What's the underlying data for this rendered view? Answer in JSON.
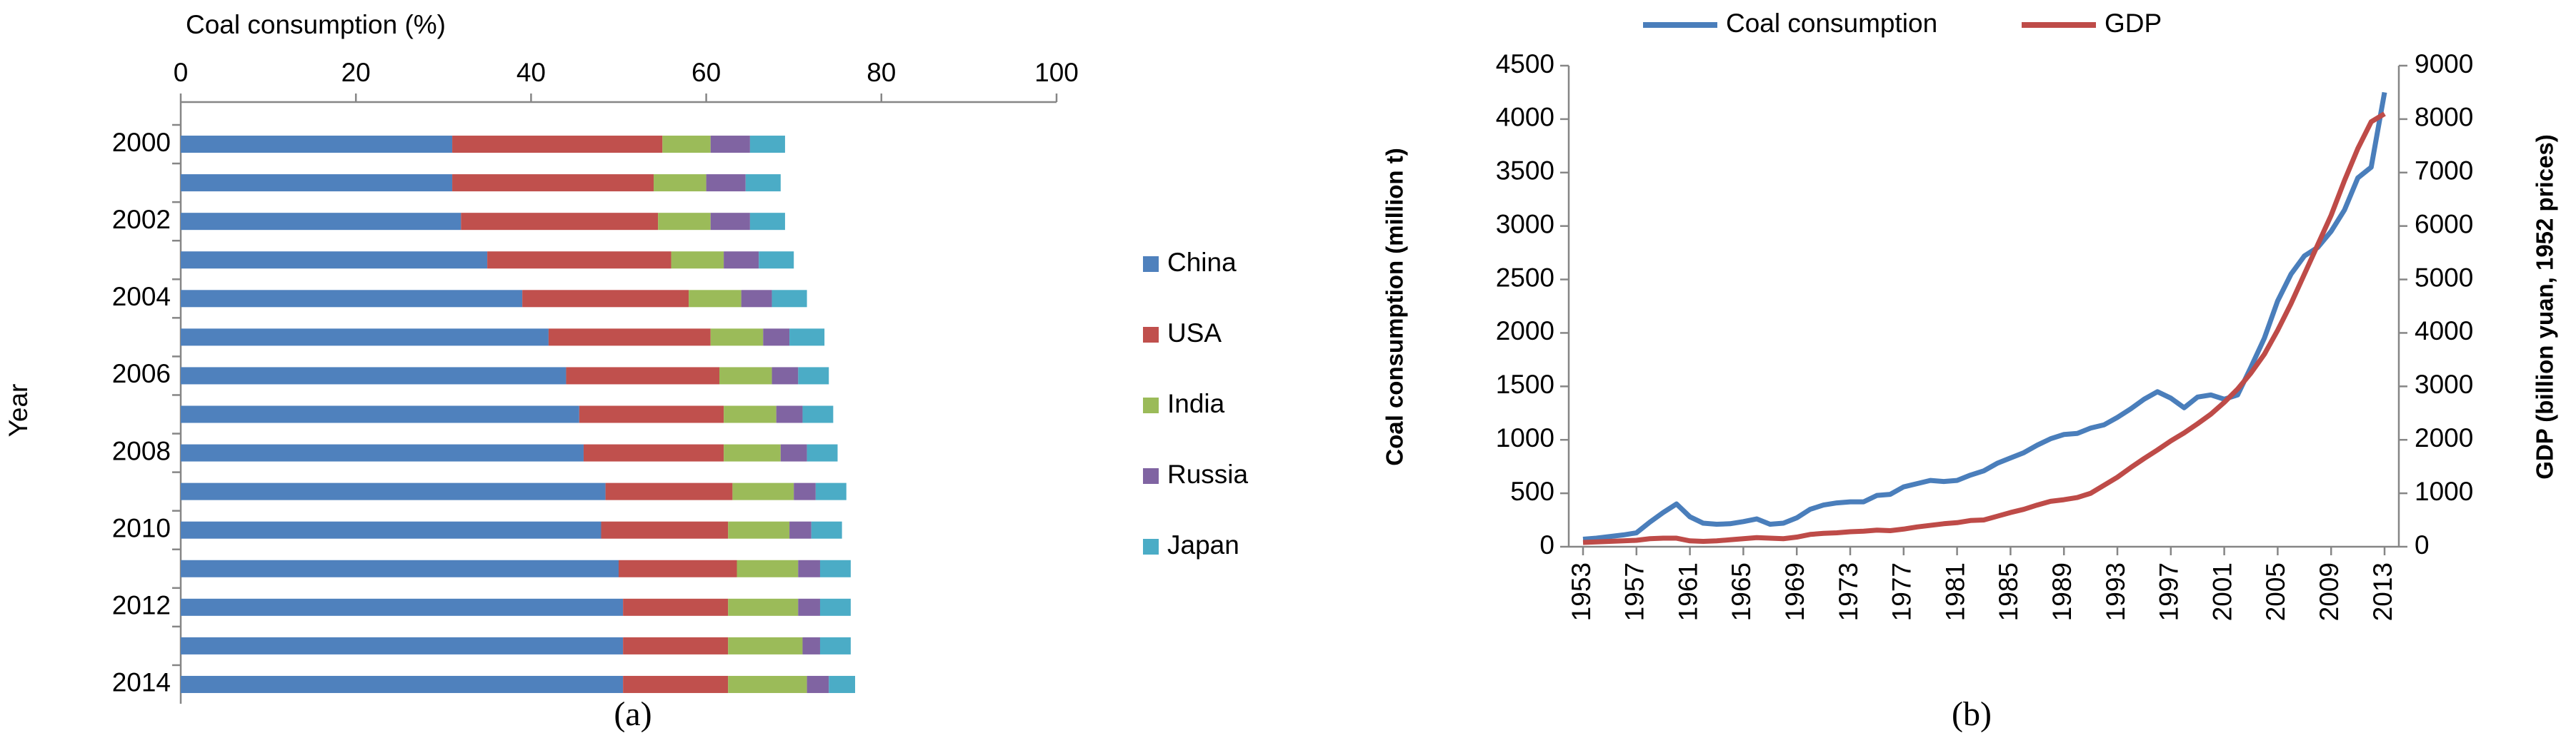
{
  "chart_data": [
    {
      "type": "bar",
      "orientation": "horizontal",
      "stacked": true,
      "xlabel": "Coal consumption (%)",
      "ylabel": "Year",
      "caption": "(a)",
      "categories": [
        "2000",
        null,
        "2002",
        null,
        "2004",
        null,
        "2006",
        null,
        "2008",
        null,
        "2010",
        null,
        "2012",
        null,
        "2014"
      ],
      "series": [
        {
          "name": "China",
          "color": "#4f81bd",
          "values": [
            31,
            31,
            32,
            35,
            39,
            42,
            44,
            45.5,
            46,
            48.5,
            48,
            50,
            50.5,
            50.5,
            50.5
          ]
        },
        {
          "name": "USA",
          "color": "#c0504d",
          "values": [
            24,
            23,
            22.5,
            21,
            19,
            18.5,
            17.5,
            16.5,
            16,
            14.5,
            14.5,
            13.5,
            12,
            12,
            12
          ]
        },
        {
          "name": "India",
          "color": "#9bbb59",
          "values": [
            5.5,
            6,
            6,
            6,
            6,
            6,
            6,
            6,
            6.5,
            7,
            7,
            7,
            8,
            8.5,
            9
          ]
        },
        {
          "name": "Russia",
          "color": "#8064a2",
          "values": [
            4.5,
            4.5,
            4.5,
            4,
            3.5,
            3,
            3,
            3,
            3,
            2.5,
            2.5,
            2.5,
            2.5,
            2,
            2.5
          ]
        },
        {
          "name": "Japan",
          "color": "#4bacc6",
          "values": [
            4,
            4,
            4,
            4,
            4,
            4,
            3.5,
            3.5,
            3.5,
            3.5,
            3.5,
            3.5,
            3.5,
            3.5,
            3
          ]
        }
      ],
      "xlim": [
        0,
        100
      ],
      "xticks": [
        0,
        20,
        40,
        60,
        80,
        100
      ],
      "legend": "right"
    },
    {
      "type": "line",
      "caption": "(b)",
      "ylabel": "Coal consumption (million t)",
      "y2label": "GDP (billion yuan, 1952 prices)",
      "x": [
        1953,
        1954,
        1955,
        1956,
        1957,
        1958,
        1959,
        1960,
        1961,
        1962,
        1963,
        1964,
        1965,
        1966,
        1967,
        1968,
        1969,
        1970,
        1971,
        1972,
        1973,
        1974,
        1975,
        1976,
        1977,
        1978,
        1979,
        1980,
        1981,
        1982,
        1983,
        1984,
        1985,
        1986,
        1987,
        1988,
        1989,
        1990,
        1991,
        1992,
        1993,
        1994,
        1995,
        1996,
        1997,
        1998,
        1999,
        2000,
        2001,
        2002,
        2003,
        2004,
        2005,
        2006,
        2007,
        2008,
        2009,
        2010,
        2011,
        2012,
        2013
      ],
      "series": [
        {
          "name": "Coal consumption",
          "color": "#4a7ebb",
          "values": [
            70,
            80,
            95,
            110,
            130,
            230,
            320,
            400,
            280,
            220,
            210,
            215,
            235,
            260,
            210,
            220,
            270,
            350,
            390,
            410,
            420,
            420,
            480,
            490,
            560,
            590,
            620,
            610,
            620,
            670,
            710,
            780,
            830,
            880,
            950,
            1010,
            1050,
            1060,
            1110,
            1140,
            1210,
            1290,
            1380,
            1450,
            1390,
            1300,
            1400,
            1420,
            1380,
            1420,
            1680,
            1950,
            2300,
            2550,
            2720,
            2800,
            2950,
            3150,
            3450,
            3550,
            4250
          ]
        },
        {
          "name": "GDP",
          "color": "#be4b48",
          "axis": "y2",
          "values": [
            80,
            90,
            100,
            110,
            120,
            150,
            160,
            160,
            110,
            100,
            110,
            130,
            150,
            170,
            160,
            150,
            180,
            230,
            250,
            260,
            280,
            290,
            310,
            300,
            330,
            370,
            400,
            430,
            450,
            490,
            500,
            570,
            640,
            700,
            780,
            850,
            880,
            920,
            1000,
            1150,
            1300,
            1480,
            1650,
            1810,
            1980,
            2130,
            2300,
            2480,
            2700,
            2950,
            3250,
            3600,
            4050,
            4550,
            5100,
            5650,
            6200,
            6850,
            7450,
            7950,
            8100
          ]
        }
      ],
      "xlim": [
        1953,
        2013
      ],
      "xticks": [
        1953,
        1957,
        1961,
        1965,
        1969,
        1973,
        1977,
        1981,
        1985,
        1989,
        1993,
        1997,
        2001,
        2005,
        2009,
        2013
      ],
      "ylim": [
        0,
        4500
      ],
      "yticks": [
        0,
        500,
        1000,
        1500,
        2000,
        2500,
        3000,
        3500,
        4000,
        4500
      ],
      "y2lim": [
        0,
        9000
      ],
      "y2ticks": [
        0,
        1000,
        2000,
        3000,
        4000,
        5000,
        6000,
        7000,
        8000,
        9000
      ],
      "legend": "top"
    }
  ]
}
